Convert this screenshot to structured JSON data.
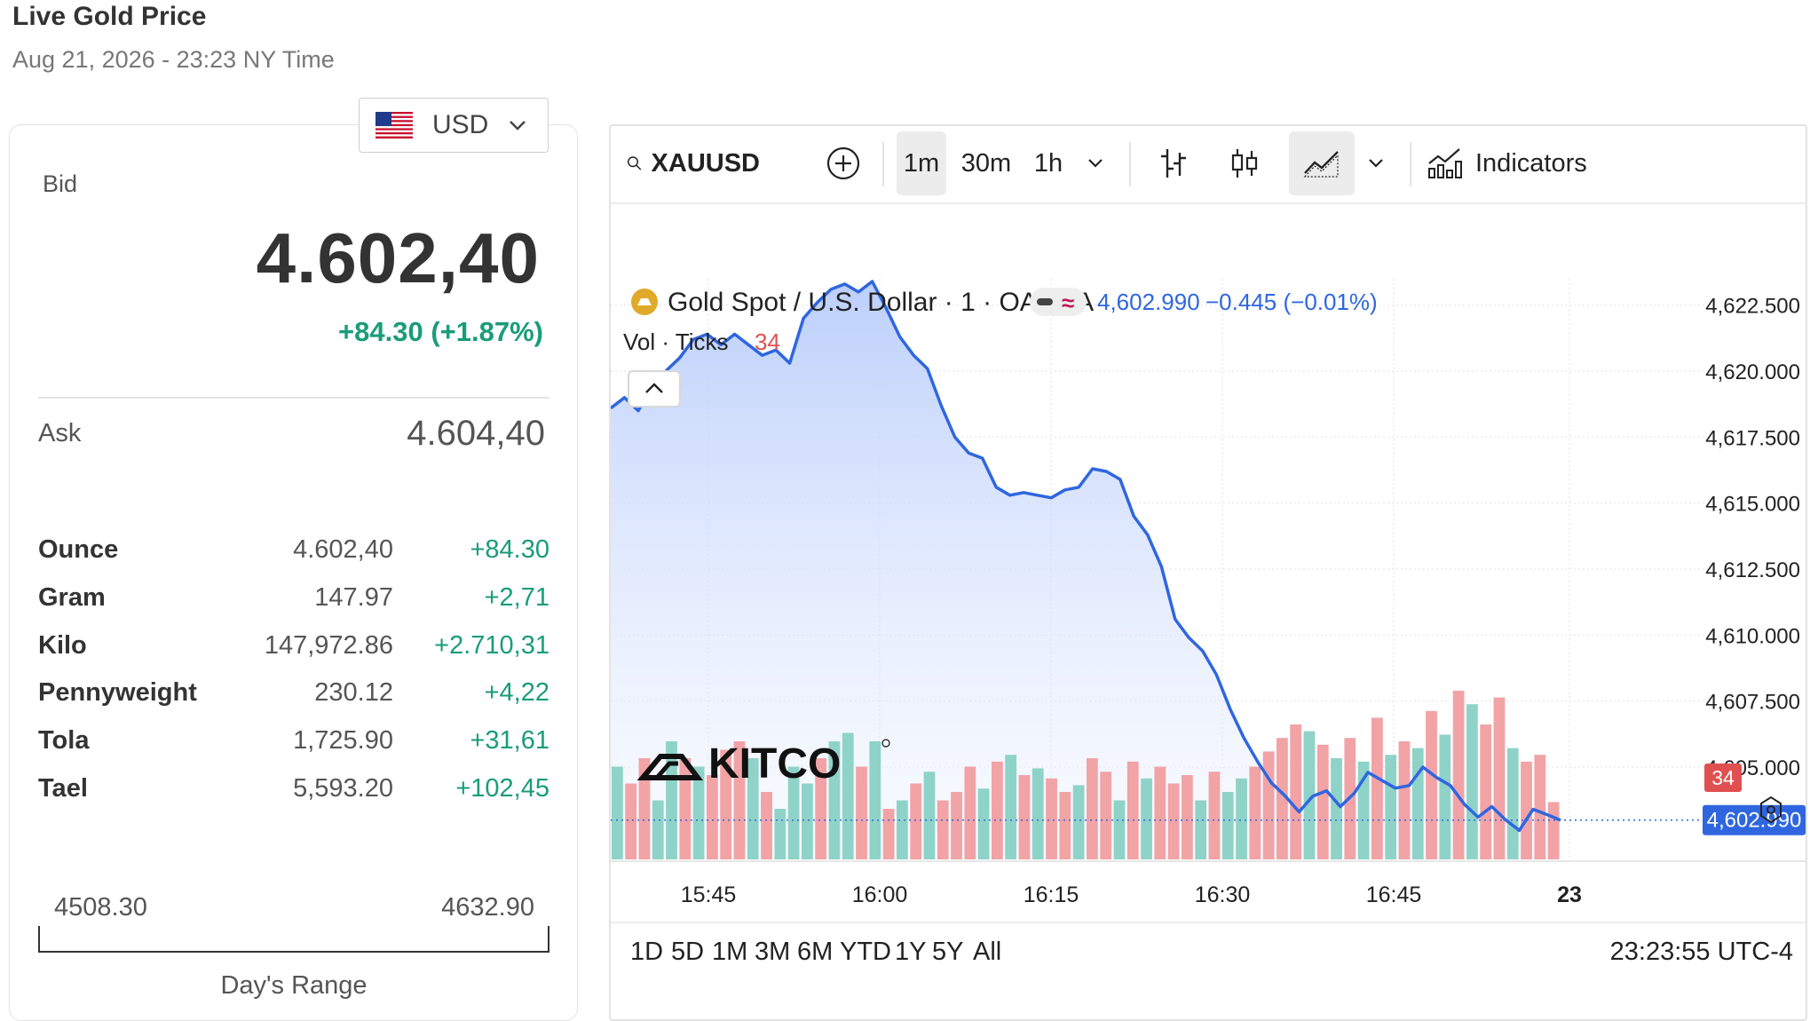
{
  "page": {
    "title": "Live Gold Price",
    "subtitle": "Aug 21, 2026 - 23:23 NY Time"
  },
  "currency": {
    "selected": "USD",
    "flag_icon": "us-flag-icon"
  },
  "quote": {
    "bid_label": "Bid",
    "bid": "4.602,40",
    "change": "+84.30 (+1.87%)",
    "ask_label": "Ask",
    "ask": "4.604,40"
  },
  "units": [
    {
      "name": "Ounce",
      "price": "4.602,40",
      "change": "+84.30"
    },
    {
      "name": "Gram",
      "price": "147.97",
      "change": "+2,71"
    },
    {
      "name": "Kilo",
      "price": "147,972.86",
      "change": "+2.710,31"
    },
    {
      "name": "Pennyweight",
      "price": "230.12",
      "change": "+4,22"
    },
    {
      "name": "Tola",
      "price": "1,725.90",
      "change": "+31,61"
    },
    {
      "name": "Tael",
      "price": "5,593.20",
      "change": "+102,45"
    }
  ],
  "days_range": {
    "low": "4508.30",
    "high": "4632.90",
    "label": "Day's Range"
  },
  "toolbar": {
    "symbol": "XAUUSD",
    "intervals": [
      "1m",
      "30m",
      "1h"
    ],
    "active_interval": "1m",
    "indicators_label": "Indicators"
  },
  "ranges": [
    "1D",
    "5D",
    "1M",
    "3M",
    "6M",
    "YTD",
    "1Y",
    "5Y",
    "All"
  ],
  "clock": "23:23:55 UTC-4",
  "colors": {
    "line": "#2f66e0",
    "volume_up": "#8fd3c8",
    "volume_down": "#f1a3a6",
    "positive": "#1a9c7a",
    "last_price_tag": "#2f66e0",
    "last_volume_tag": "#e05050"
  },
  "chart_data": {
    "type": "line",
    "legend": {
      "instrument": "Gold Spot / U.S. Dollar · 1 · OANDA",
      "last": "4,602.990",
      "change": "−0.445 (−0.01%)",
      "volume_label": "Vol · Ticks",
      "volume_last": "34"
    },
    "watermark": "KITCO",
    "y_ticks": [
      "4,622.500",
      "4,620.000",
      "4,617.500",
      "4,615.000",
      "4,612.500",
      "4,610.000",
      "4,607.500",
      "4,605.000"
    ],
    "ylim": [
      4601.5,
      4623.5
    ],
    "x_ticks": [
      "15:45",
      "16:00",
      "16:15",
      "16:30",
      "16:45",
      "23"
    ],
    "last_price_label": "4,602.990",
    "last_volume_label": "34",
    "series": [
      {
        "values": [
          4618.6,
          4619.0,
          4618.5,
          4619.4,
          4620.0,
          4620.5,
          4621.2,
          4621.4,
          4621.0,
          4621.4,
          4621.0,
          4620.6,
          4620.8,
          4620.3,
          4622.0,
          4622.6,
          4623.1,
          4623.3,
          4623.0,
          4623.4,
          4622.4,
          4621.3,
          4620.6,
          4620.1,
          4618.7,
          4617.5,
          4616.9,
          4616.7,
          4615.6,
          4615.3,
          4615.4,
          4615.3,
          4615.2,
          4615.5,
          4615.6,
          4616.3,
          4616.2,
          4615.9,
          4614.5,
          4613.8,
          4612.6,
          4610.6,
          4609.9,
          4609.4,
          4608.5,
          4607.2,
          4606.1,
          4605.2,
          4604.4,
          4603.9,
          4603.3,
          4603.9,
          4604.1,
          4603.5,
          4604.0,
          4604.8,
          4604.5,
          4604.2,
          4604.3,
          4605.0,
          4604.6,
          4604.3,
          4603.6,
          4603.1,
          4603.5,
          4603.0,
          4602.6,
          4603.4,
          4603.2,
          4602.99
        ],
        "note_x": "one point per minute, 15:35–16:51 (approximate)"
      }
    ],
    "volume": [
      {
        "v": 55,
        "d": "up"
      },
      {
        "v": 45,
        "d": "down"
      },
      {
        "v": 60,
        "d": "down"
      },
      {
        "v": 35,
        "d": "up"
      },
      {
        "v": 70,
        "d": "up"
      },
      {
        "v": 60,
        "d": "down"
      },
      {
        "v": 55,
        "d": "up"
      },
      {
        "v": 50,
        "d": "down"
      },
      {
        "v": 65,
        "d": "down"
      },
      {
        "v": 70,
        "d": "down"
      },
      {
        "v": 60,
        "d": "up"
      },
      {
        "v": 40,
        "d": "down"
      },
      {
        "v": 30,
        "d": "up"
      },
      {
        "v": 55,
        "d": "up"
      },
      {
        "v": 45,
        "d": "up"
      },
      {
        "v": 60,
        "d": "down"
      },
      {
        "v": 70,
        "d": "up"
      },
      {
        "v": 75,
        "d": "up"
      },
      {
        "v": 55,
        "d": "down"
      },
      {
        "v": 70,
        "d": "up"
      },
      {
        "v": 30,
        "d": "down"
      },
      {
        "v": 35,
        "d": "up"
      },
      {
        "v": 45,
        "d": "down"
      },
      {
        "v": 52,
        "d": "up"
      },
      {
        "v": 35,
        "d": "down"
      },
      {
        "v": 40,
        "d": "down"
      },
      {
        "v": 55,
        "d": "down"
      },
      {
        "v": 42,
        "d": "up"
      },
      {
        "v": 58,
        "d": "down"
      },
      {
        "v": 62,
        "d": "up"
      },
      {
        "v": 50,
        "d": "down"
      },
      {
        "v": 54,
        "d": "up"
      },
      {
        "v": 48,
        "d": "down"
      },
      {
        "v": 40,
        "d": "down"
      },
      {
        "v": 44,
        "d": "up"
      },
      {
        "v": 60,
        "d": "down"
      },
      {
        "v": 52,
        "d": "down"
      },
      {
        "v": 35,
        "d": "up"
      },
      {
        "v": 58,
        "d": "down"
      },
      {
        "v": 48,
        "d": "up"
      },
      {
        "v": 55,
        "d": "down"
      },
      {
        "v": 45,
        "d": "down"
      },
      {
        "v": 50,
        "d": "down"
      },
      {
        "v": 35,
        "d": "up"
      },
      {
        "v": 52,
        "d": "down"
      },
      {
        "v": 40,
        "d": "up"
      },
      {
        "v": 48,
        "d": "up"
      },
      {
        "v": 55,
        "d": "down"
      },
      {
        "v": 64,
        "d": "down"
      },
      {
        "v": 72,
        "d": "down"
      },
      {
        "v": 80,
        "d": "down"
      },
      {
        "v": 76,
        "d": "up"
      },
      {
        "v": 68,
        "d": "down"
      },
      {
        "v": 60,
        "d": "up"
      },
      {
        "v": 72,
        "d": "down"
      },
      {
        "v": 58,
        "d": "up"
      },
      {
        "v": 84,
        "d": "down"
      },
      {
        "v": 62,
        "d": "up"
      },
      {
        "v": 70,
        "d": "down"
      },
      {
        "v": 66,
        "d": "up"
      },
      {
        "v": 88,
        "d": "down"
      },
      {
        "v": 74,
        "d": "up"
      },
      {
        "v": 100,
        "d": "down"
      },
      {
        "v": 92,
        "d": "up"
      },
      {
        "v": 80,
        "d": "down"
      },
      {
        "v": 96,
        "d": "down"
      },
      {
        "v": 66,
        "d": "up"
      },
      {
        "v": 58,
        "d": "down"
      },
      {
        "v": 62,
        "d": "down"
      },
      {
        "v": 34,
        "d": "down"
      }
    ]
  }
}
